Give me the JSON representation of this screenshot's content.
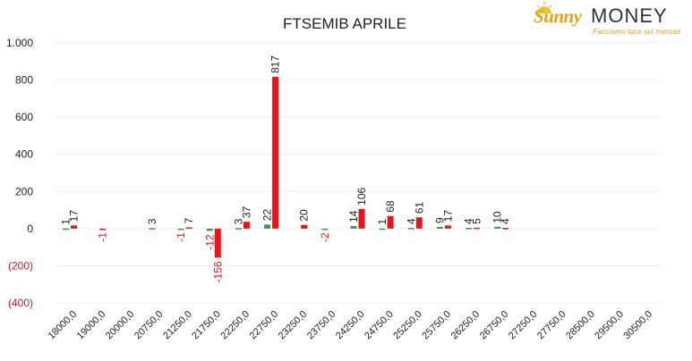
{
  "logo": {
    "brand_part1": "Sunny",
    "brand_part2": "MONEY",
    "tagline": "Facciamo luce sui mercati",
    "colors": {
      "sunny": "#e8a21a",
      "money": "#333333"
    }
  },
  "chart_data": {
    "type": "bar",
    "title": "FTSEMIB APRILE",
    "xlabel": "",
    "ylabel": "",
    "ylim": [
      -400,
      1000
    ],
    "yticks": [
      1000,
      800,
      600,
      400,
      200,
      0,
      -200,
      -400
    ],
    "ytick_labels": [
      "1.000",
      "800",
      "600",
      "400",
      "200",
      "0",
      "(200)",
      "(400)"
    ],
    "grid": true,
    "categories": [
      "18000,0",
      "19000,0",
      "20000,0",
      "20750,0",
      "21250,0",
      "21750,0",
      "22250,0",
      "22750,0",
      "23250,0",
      "23750,0",
      "24250,0",
      "24750,0",
      "25250,0",
      "25750,0",
      "26250,0",
      "26750,0",
      "27250,0",
      "27750,0",
      "28500,0",
      "29500,0",
      "30500,0"
    ],
    "series": [
      {
        "color": "#2aa152",
        "values": [
          1,
          null,
          null,
          3,
          -1,
          -12,
          3,
          22,
          null,
          -2,
          14,
          1,
          4,
          9,
          4,
          10,
          null,
          null,
          null,
          null,
          null
        ]
      },
      {
        "color": "#e8141c",
        "values": [
          17,
          -1,
          null,
          null,
          7,
          -156,
          37,
          817,
          20,
          null,
          106,
          68,
          61,
          17,
          5,
          4,
          null,
          null,
          null,
          null,
          null
        ]
      }
    ],
    "colors": {
      "positive_label": "#222222",
      "negative": "#e8141c",
      "grid": "#eeeeee"
    }
  }
}
